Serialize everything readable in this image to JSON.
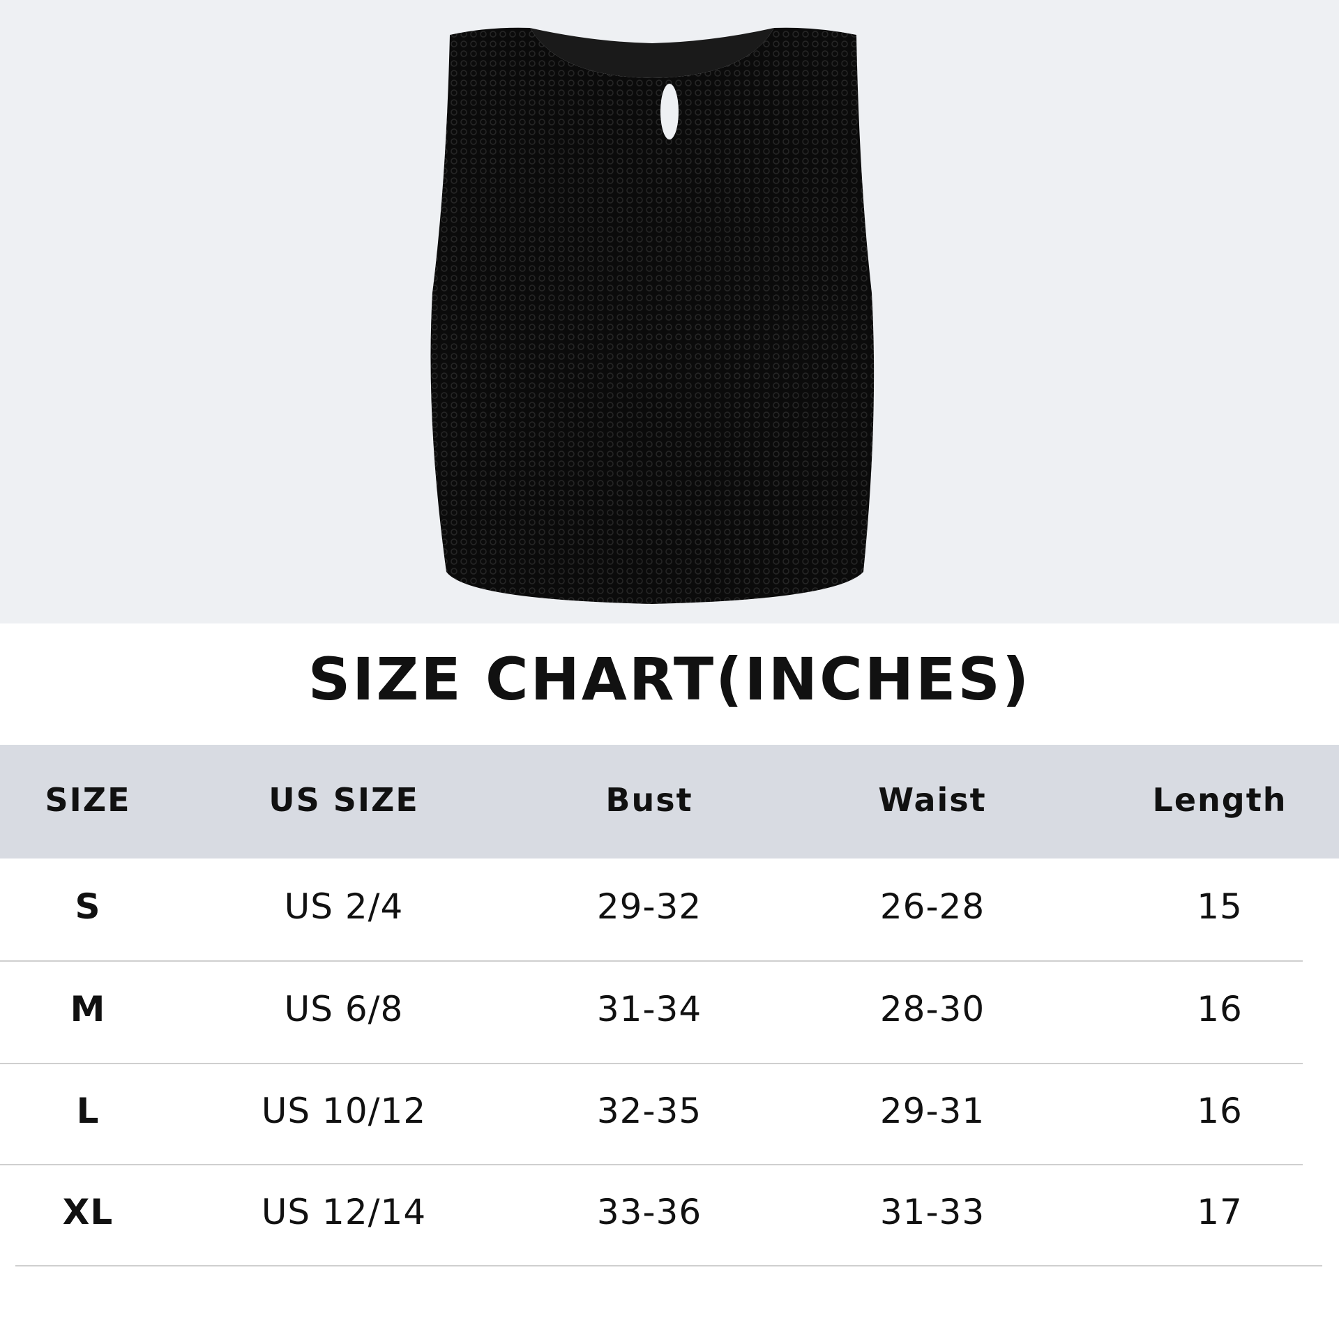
{
  "title": "SIZE CHART(INCHES)",
  "colors": {
    "photo_background": "#eef0f3",
    "header_background": "#d8dbe2",
    "garment": "#0b0b0b"
  },
  "table": {
    "headers": [
      "SIZE",
      "US SIZE",
      "Bust",
      "Waist",
      "Length"
    ],
    "rows": [
      [
        "S",
        "US 2/4",
        "29-32",
        "26-28",
        "15"
      ],
      [
        "M",
        "US 6/8",
        "31-34",
        "28-30",
        "16"
      ],
      [
        "L",
        "US 10/12",
        "32-35",
        "29-31",
        "16"
      ],
      [
        "XL",
        "US 12/14",
        "33-36",
        "31-33",
        "17"
      ]
    ]
  }
}
